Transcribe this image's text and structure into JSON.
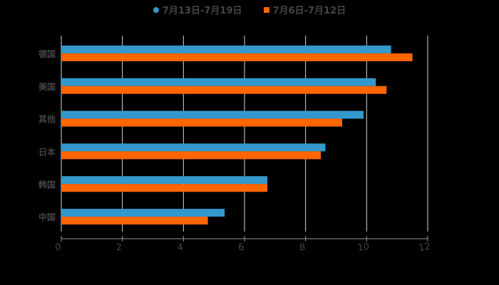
{
  "legend": [
    {
      "label": "7月13日-7月19日",
      "color": "#3399cc",
      "shape": "circle"
    },
    {
      "label": "7月6日-7月12日",
      "color": "#ff6600",
      "shape": "square"
    }
  ],
  "chart_data": {
    "type": "bar",
    "orientation": "horizontal",
    "title": "",
    "xlabel": "",
    "ylabel": "",
    "categories": [
      "德国",
      "美国",
      "其他",
      "日本",
      "韩国",
      "中国"
    ],
    "series": [
      {
        "name": "7月13日-7月19日",
        "color": "#3399cc",
        "values": [
          10.8,
          10.3,
          9.9,
          8.65,
          6.75,
          5.35
        ]
      },
      {
        "name": "7月6日-7月12日",
        "color": "#ff6600",
        "values": [
          11.5,
          10.65,
          9.2,
          8.5,
          6.75,
          4.8
        ]
      }
    ],
    "xlim": [
      0,
      12
    ],
    "xticks": [
      0,
      2,
      4,
      6,
      8,
      10,
      12
    ],
    "grid": true,
    "legend_position": "top"
  }
}
